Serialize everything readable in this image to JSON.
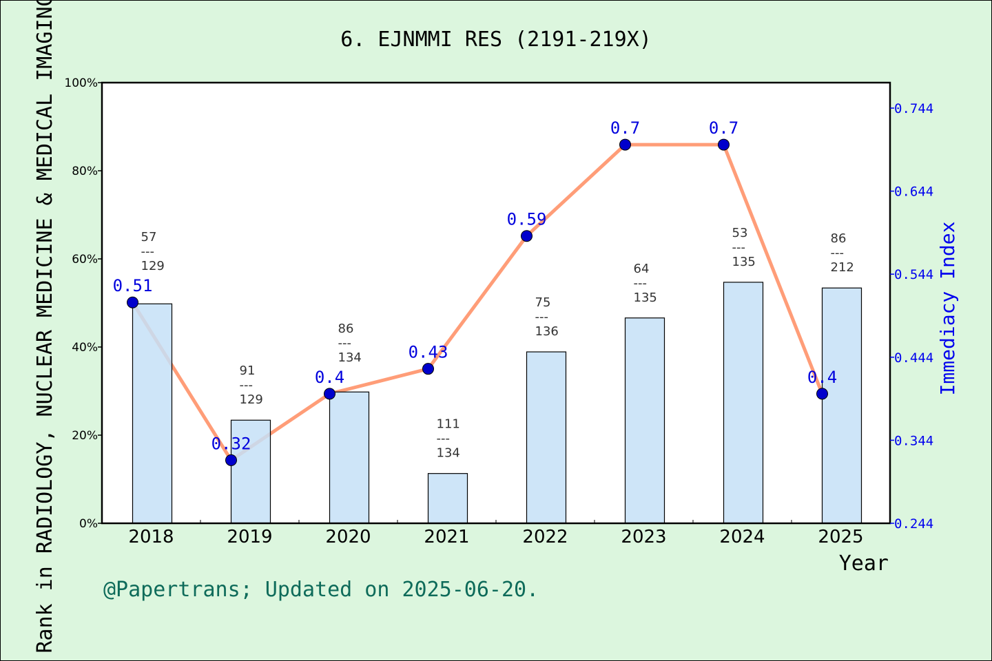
{
  "chart_data": {
    "type": "bar+line",
    "title": "6. EJNMMI RES (2191-219X)",
    "xlabel": "Year",
    "ylabel_left": "Rank in RADIOLOGY, NUCLEAR MEDICINE & MEDICAL IMAGING",
    "ylabel_right": "Immediacy Index",
    "categories": [
      "2018",
      "2019",
      "2020",
      "2021",
      "2022",
      "2023",
      "2024",
      "2025"
    ],
    "left_axis": {
      "ylim": [
        0,
        100
      ],
      "ticks": [
        "0%",
        "20%",
        "40%",
        "60%",
        "80%",
        "100%"
      ]
    },
    "right_axis": {
      "ylim": [
        0.244,
        0.774
      ],
      "ticks": [
        "0.244",
        "0.344",
        "0.444",
        "0.544",
        "0.644",
        "0.744"
      ]
    },
    "bars": {
      "values_percent": [
        49.8,
        23.4,
        29.8,
        11.3,
        38.9,
        46.6,
        54.7,
        53.4
      ],
      "rank_labels": [
        {
          "rank": "57",
          "total": "129"
        },
        {
          "rank": "91",
          "total": "129"
        },
        {
          "rank": "86",
          "total": "134"
        },
        {
          "rank": "111",
          "total": "134"
        },
        {
          "rank": "75",
          "total": "136"
        },
        {
          "rank": "64",
          "total": "135"
        },
        {
          "rank": "53",
          "total": "135"
        },
        {
          "rank": "86",
          "total": "212"
        }
      ],
      "separator": "---",
      "color": "#c5e0f7"
    },
    "line": {
      "values": [
        0.51,
        0.32,
        0.4,
        0.43,
        0.59,
        0.7,
        0.7,
        0.4
      ],
      "labels": [
        "0.51",
        "0.32",
        "0.4",
        "0.43",
        "0.59",
        "0.7",
        "0.7",
        "0.4"
      ],
      "line_color": "#ff9d78",
      "marker_color": "#0000cc"
    },
    "grid": false
  },
  "footer": "@Papertrans; Updated on 2025-06-20."
}
